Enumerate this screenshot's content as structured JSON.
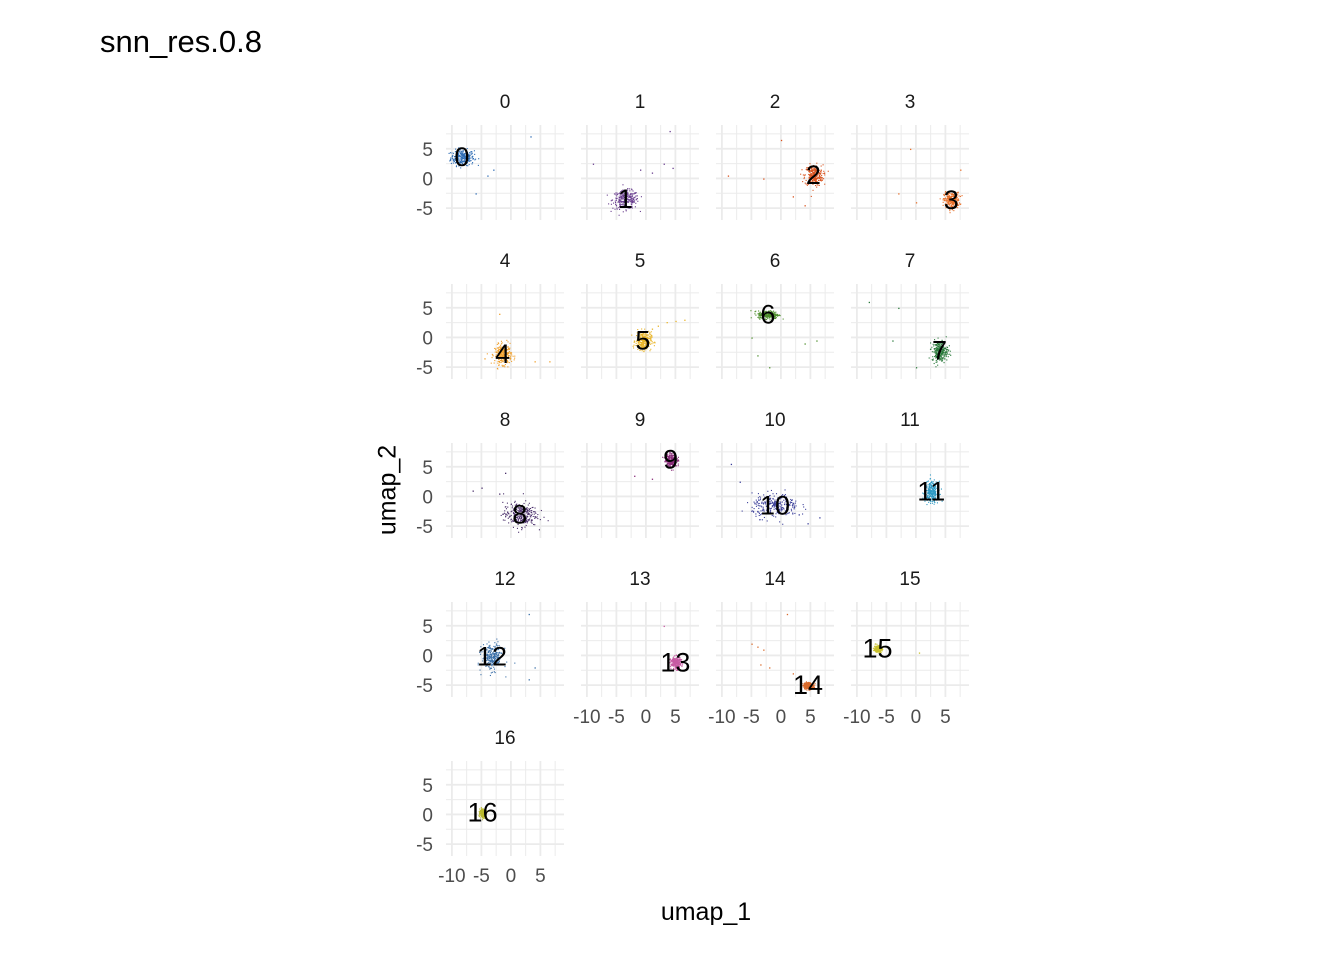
{
  "chart_data": {
    "type": "scatter",
    "title": "snn_res.0.8",
    "xlabel": "umap_1",
    "ylabel": "umap_2",
    "xlim": [
      -11,
      9
    ],
    "ylim": [
      -7,
      9
    ],
    "x_ticks": [
      -10,
      -5,
      0,
      5
    ],
    "x_tick_labels": [
      "-10",
      "-5",
      "0",
      "5"
    ],
    "y_ticks": [
      -5,
      0,
      5
    ],
    "y_tick_labels": [
      "-5",
      "0",
      "5"
    ],
    "grid": true,
    "legend": "none",
    "facet_ncol": 4,
    "panels": [
      {
        "label": "0",
        "color": "#2f6db5",
        "cluster_label": "0",
        "center": [
          -8.3,
          3.6
        ],
        "spread": [
          1.8,
          1.2
        ],
        "stray_points": [
          [
            3.3,
            7.1
          ],
          [
            -3.0,
            1.5
          ],
          [
            -6.0,
            -2.5
          ],
          [
            -4.0,
            0.5
          ]
        ]
      },
      {
        "label": "1",
        "color": "#6a3f8f",
        "cluster_label": "1",
        "center": [
          -3.5,
          -3.5
        ],
        "spread": [
          2.0,
          1.4
        ],
        "stray_points": [
          [
            4.0,
            8.0
          ],
          [
            -9.0,
            2.5
          ],
          [
            -1.0,
            1.5
          ],
          [
            1.0,
            1.0
          ],
          [
            3.0,
            2.5
          ],
          [
            4.5,
            1.8
          ]
        ]
      },
      {
        "label": "2",
        "color": "#d9531e",
        "cluster_label": "2",
        "center": [
          5.5,
          0.6
        ],
        "spread": [
          1.4,
          1.6
        ],
        "stray_points": [
          [
            0.0,
            6.5
          ],
          [
            -9.0,
            0.5
          ],
          [
            -3.0,
            0.0
          ],
          [
            4.0,
            -4.5
          ],
          [
            2.0,
            -3.0
          ]
        ]
      },
      {
        "label": "3",
        "color": "#e8702a",
        "cluster_label": "3",
        "center": [
          6.0,
          -3.6
        ],
        "spread": [
          1.2,
          1.2
        ],
        "stray_points": [
          [
            -1.0,
            5.0
          ],
          [
            -3.0,
            -2.5
          ],
          [
            0.0,
            -4.0
          ],
          [
            7.5,
            1.5
          ]
        ]
      },
      {
        "label": "4",
        "color": "#f0a12e",
        "cluster_label": "4",
        "center": [
          -1.4,
          -2.8
        ],
        "spread": [
          1.3,
          1.5
        ],
        "stray_points": [
          [
            -2.0,
            4.0
          ],
          [
            4.0,
            -4.0
          ],
          [
            6.5,
            -4.0
          ],
          [
            -4.5,
            -3.5
          ]
        ]
      },
      {
        "label": "5",
        "color": "#e9b52a",
        "cluster_label": "5",
        "center": [
          -0.5,
          -0.5
        ],
        "spread": [
          1.2,
          1.4
        ],
        "stray_points": [
          [
            2.0,
            2.0
          ],
          [
            3.5,
            2.6
          ],
          [
            5.0,
            2.8
          ],
          [
            6.5,
            3.0
          ],
          [
            1.0,
            1.5
          ]
        ]
      },
      {
        "label": "6",
        "color": "#4f8f2e",
        "cluster_label": "6",
        "center": [
          -2.2,
          3.9
        ],
        "spread": [
          1.6,
          0.6
        ],
        "stray_points": [
          [
            -4.0,
            -3.0
          ],
          [
            -2.0,
            -5.0
          ],
          [
            4.0,
            -1.0
          ],
          [
            6.0,
            -0.5
          ],
          [
            -5.0,
            0.0
          ]
        ]
      },
      {
        "label": "7",
        "color": "#2a7a3b",
        "cluster_label": "7",
        "center": [
          4.0,
          -2.2
        ],
        "spread": [
          1.2,
          1.6
        ],
        "stray_points": [
          [
            -8.0,
            6.0
          ],
          [
            -3.0,
            5.0
          ],
          [
            -4.0,
            -0.5
          ],
          [
            0.0,
            -5.0
          ]
        ]
      },
      {
        "label": "8",
        "color": "#4a2f6b",
        "cluster_label": "8",
        "center": [
          1.5,
          -3.0
        ],
        "spread": [
          2.6,
          1.8
        ],
        "stray_points": [
          [
            -6.5,
            1.0
          ],
          [
            -5.0,
            1.5
          ],
          [
            -1.0,
            4.0
          ],
          [
            -2.0,
            0.5
          ]
        ]
      },
      {
        "label": "9",
        "color": "#8a2e7a",
        "cluster_label": "9",
        "center": [
          4.2,
          6.2
        ],
        "spread": [
          0.9,
          1.0
        ],
        "stray_points": [
          [
            -2.0,
            3.5
          ],
          [
            1.0,
            3.0
          ]
        ]
      },
      {
        "label": "10",
        "color": "#3b3f9a",
        "cluster_label": "10",
        "center": [
          -1.0,
          -1.5
        ],
        "spread": [
          3.6,
          1.8
        ],
        "stray_points": [
          [
            -8.5,
            5.5
          ],
          [
            -7.0,
            2.5
          ],
          [
            4.5,
            -4.5
          ],
          [
            6.5,
            -3.5
          ],
          [
            3.0,
            -3.0
          ]
        ]
      },
      {
        "label": "11",
        "color": "#2e9ac4",
        "cluster_label": "11",
        "center": [
          2.6,
          0.8
        ],
        "spread": [
          1.0,
          1.6
        ],
        "stray_points": []
      },
      {
        "label": "12",
        "color": "#3a6fa8",
        "cluster_label": "12",
        "center": [
          -3.2,
          -0.2
        ],
        "spread": [
          1.6,
          2.0
        ],
        "stray_points": [
          [
            3.0,
            7.0
          ],
          [
            4.0,
            -2.0
          ],
          [
            3.0,
            -4.0
          ]
        ]
      },
      {
        "label": "13",
        "color": "#c75ba3",
        "cluster_label": "13",
        "center": [
          5.0,
          -1.2
        ],
        "spread": [
          0.8,
          0.9
        ],
        "stray_points": [
          [
            3.0,
            5.0
          ]
        ]
      },
      {
        "label": "14",
        "color": "#d96a2b",
        "cluster_label": "14",
        "center": [
          4.6,
          -5.0
        ],
        "spread": [
          0.8,
          0.5
        ],
        "stray_points": [
          [
            -3.0,
            1.0
          ],
          [
            -5.0,
            2.0
          ],
          [
            -2.0,
            -2.0
          ],
          [
            -4.0,
            1.5
          ],
          [
            1.0,
            7.0
          ],
          [
            2.0,
            -3.0
          ],
          [
            -3.5,
            -1.5
          ]
        ]
      },
      {
        "label": "15",
        "color": "#c9c12e",
        "cluster_label": "15",
        "center": [
          -6.5,
          1.2
        ],
        "spread": [
          0.6,
          0.5
        ],
        "stray_points": [
          [
            0.5,
            0.5
          ]
        ]
      },
      {
        "label": "16",
        "color": "#b9b82e",
        "cluster_label": "16",
        "center": [
          -4.8,
          0.3
        ],
        "spread": [
          0.5,
          0.6
        ],
        "stray_points": []
      }
    ]
  }
}
